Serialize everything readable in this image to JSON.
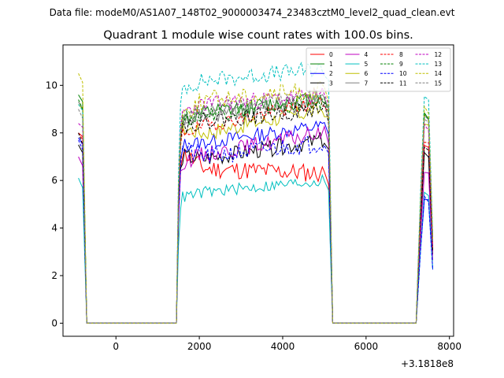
{
  "suptitle": "Data file: modeM0/AS1A07_148T02_9000003474_23483cztM0_level2_quad_clean.evt",
  "chart_data": {
    "type": "line",
    "title": "Quadrant 1 module wise count rates with 100.0s bins.",
    "xlabel": "",
    "ylabel": "",
    "x_offset_label": "+3.1818e8",
    "xlim": [
      -1270,
      8100
    ],
    "ylim": [
      -0.55,
      11.7
    ],
    "x_ticks": [
      0,
      2000,
      4000,
      6000,
      8000
    ],
    "x_tick_labels": [
      "0",
      "2000",
      "4000",
      "6000",
      "8000"
    ],
    "y_ticks": [
      0,
      2,
      4,
      6,
      8,
      10
    ],
    "y_tick_labels": [
      "0",
      "2",
      "4",
      "6",
      "8",
      "10"
    ],
    "grid": false,
    "legend_position": "top-right",
    "legend_columns": 4,
    "series": [
      {
        "name": "0",
        "color": "#ff0000",
        "dash": "solid",
        "first_bin": 8.0,
        "active_level": 6.5,
        "noise": 0.4,
        "late_level": 6.3,
        "early_level": 7.2,
        "end_bin": 7.6
      },
      {
        "name": "1",
        "color": "#008000",
        "dash": "solid",
        "first_bin": 9.6,
        "active_level": 8.8,
        "noise": 0.35,
        "late_level": 9.5,
        "early_level": 8.5,
        "end_bin": 8.8
      },
      {
        "name": "2",
        "color": "#0000ff",
        "dash": "solid",
        "first_bin": 7.8,
        "active_level": 7.6,
        "noise": 0.3,
        "late_level": 8.3,
        "early_level": 7.5,
        "end_bin": 5.3
      },
      {
        "name": "3",
        "color": "#000000",
        "dash": "solid",
        "first_bin": 7.5,
        "active_level": 6.9,
        "noise": 0.35,
        "late_level": 7.7,
        "early_level": 7.0,
        "end_bin": 7.1
      },
      {
        "name": "4",
        "color": "#bf00bf",
        "dash": "solid",
        "first_bin": 7.0,
        "active_level": 7.1,
        "noise": 0.35,
        "late_level": 8.0,
        "early_level": 6.8,
        "end_bin": 6.4
      },
      {
        "name": "5",
        "color": "#00bfbf",
        "dash": "solid",
        "first_bin": 6.1,
        "active_level": 5.5,
        "noise": 0.25,
        "late_level": 6.0,
        "early_level": 5.3,
        "end_bin": 5.4
      },
      {
        "name": "6",
        "color": "#bfbf00",
        "dash": "solid",
        "first_bin": 9.2,
        "active_level": 8.0,
        "noise": 0.35,
        "late_level": 9.0,
        "early_level": 8.2,
        "end_bin": 8.4
      },
      {
        "name": "7",
        "color": "#808080",
        "dash": "solid",
        "first_bin": 9.3,
        "active_level": 8.7,
        "noise": 0.35,
        "late_level": 9.4,
        "early_level": 8.5,
        "end_bin": 8.6
      },
      {
        "name": "8",
        "color": "#ff0000",
        "dash": "dashed",
        "first_bin": 8.0,
        "active_level": 8.3,
        "noise": 0.3,
        "late_level": 9.3,
        "early_level": 8.0,
        "end_bin": 7.6
      },
      {
        "name": "9",
        "color": "#008000",
        "dash": "dashed",
        "first_bin": 9.4,
        "active_level": 8.8,
        "noise": 0.35,
        "late_level": 9.3,
        "early_level": 8.6,
        "end_bin": 8.9
      },
      {
        "name": "10",
        "color": "#0000ff",
        "dash": "dashed",
        "first_bin": 7.7,
        "active_level": 7.0,
        "noise": 0.4,
        "late_level": 7.6,
        "early_level": 7.3,
        "end_bin": 5.3
      },
      {
        "name": "11",
        "color": "#000000",
        "dash": "dashed",
        "first_bin": 8.0,
        "active_level": 8.5,
        "noise": 0.35,
        "late_level": 9.0,
        "early_level": 8.3,
        "end_bin": 7.5
      },
      {
        "name": "12",
        "color": "#bf00bf",
        "dash": "dashed",
        "first_bin": 8.4,
        "active_level": 9.2,
        "noise": 0.35,
        "late_level": 9.6,
        "early_level": 8.9,
        "end_bin": 8.3
      },
      {
        "name": "13",
        "color": "#00bfbf",
        "dash": "dashed",
        "first_bin": 9.2,
        "active_level": 10.2,
        "noise": 0.35,
        "late_level": 10.7,
        "early_level": 9.9,
        "end_bin": 9.6
      },
      {
        "name": "14",
        "color": "#bfbf00",
        "dash": "dashed",
        "first_bin": 10.5,
        "active_level": 9.4,
        "noise": 0.4,
        "late_level": 9.8,
        "early_level": 8.8,
        "end_bin": 9.0
      },
      {
        "name": "15",
        "color": "#808080",
        "dash": "dashed",
        "first_bin": 9.0,
        "active_level": 8.9,
        "noise": 0.35,
        "late_level": 9.6,
        "early_level": 8.6,
        "end_bin": 8.6
      }
    ],
    "time_bins": {
      "segment_1": {
        "start": -900,
        "end": -700,
        "step": 100
      },
      "gap_1": {
        "start": -700,
        "end": 1450
      },
      "segment_2": {
        "start": 1450,
        "end": 5000,
        "step": 50
      },
      "gap_2": {
        "start": 5200,
        "end": 7200
      },
      "segment_3": {
        "start": 7250,
        "end": 7600,
        "step": 50
      }
    }
  }
}
